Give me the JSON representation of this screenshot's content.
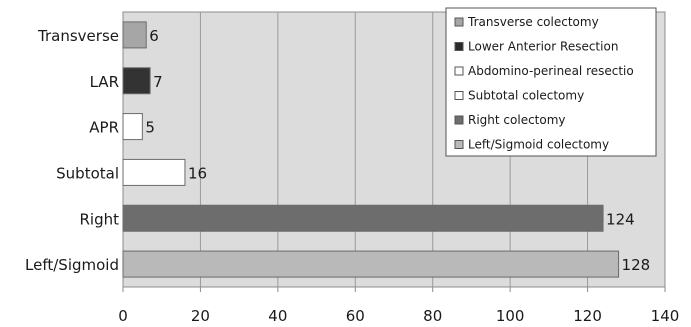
{
  "chart_data": {
    "type": "bar",
    "orientation": "horizontal",
    "categories": [
      "Left/Sigmoid",
      "Right",
      "Subtotal",
      "APR",
      "LAR",
      "Transverse"
    ],
    "values": [
      128,
      124,
      16,
      5,
      7,
      6
    ],
    "colors": [
      "#b9b9b9",
      "#6d6d6d",
      "#ffffff",
      "#ffffff",
      "#333333",
      "#a6a6a6"
    ],
    "legend": [
      {
        "label": "Transverse colectomy",
        "color": "#a6a6a6"
      },
      {
        "label": "Lower Anterior Resection",
        "color": "#2a2a2a"
      },
      {
        "label": "Abdomino-perineal resectio",
        "color": "#ffffff"
      },
      {
        "label": "Subtotal colectomy",
        "color": "#ffffff"
      },
      {
        "label": "Right colectomy",
        "color": "#6d6d6d"
      },
      {
        "label": "Left/Sigmoid colectomy",
        "color": "#b9b9b9"
      }
    ],
    "xticks": [
      "0",
      "20",
      "40",
      "60",
      "80",
      "100",
      "120",
      "140"
    ],
    "xlim": [
      0,
      140
    ],
    "grid": true,
    "legend_position": "top-right",
    "plot_background": "#dcdcdc"
  }
}
